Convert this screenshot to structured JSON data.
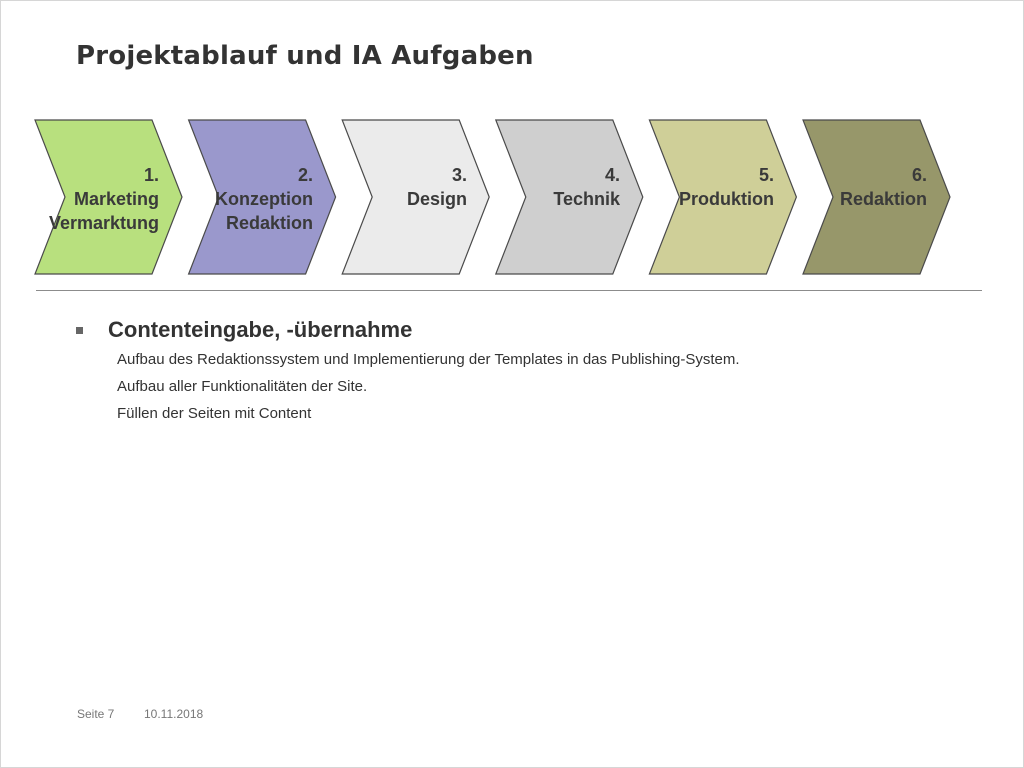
{
  "slide": {
    "title": "Projektablauf und IA Aufgaben"
  },
  "process": {
    "steps": [
      {
        "number": "1.",
        "line1": "Marketing",
        "line2": "Vermarktung",
        "color": "#b8e07e"
      },
      {
        "number": "2.",
        "line1": "Konzeption",
        "line2": "Redaktion",
        "color": "#9a98cc"
      },
      {
        "number": "3.",
        "line1": "Design",
        "line2": "",
        "color": "#ebebeb"
      },
      {
        "number": "4.",
        "line1": "Technik",
        "line2": "",
        "color": "#cfcfcf"
      },
      {
        "number": "5.",
        "line1": "Produktion",
        "line2": "",
        "color": "#cfcf98"
      },
      {
        "number": "6.",
        "line1": "Redaktion",
        "line2": "",
        "color": "#97976a"
      }
    ]
  },
  "content": {
    "heading": "Contenteingabe, -übernahme",
    "items": [
      "Aufbau des Redaktionssystem und Implementierung der Templates in das Publishing-System.",
      "Aufbau aller Funktionalitäten der Site.",
      "Füllen der Seiten mit Content"
    ]
  },
  "footer": {
    "page": "Seite 7",
    "date": "10.11.2018"
  }
}
